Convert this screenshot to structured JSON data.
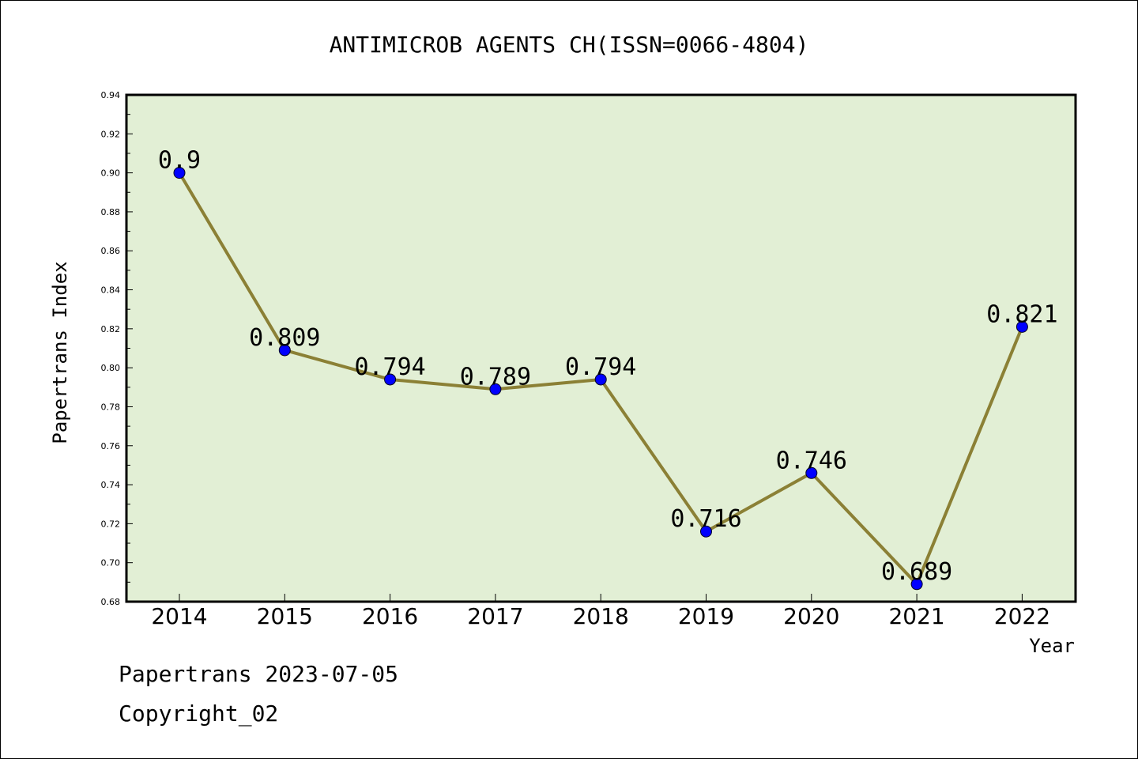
{
  "chart_data": {
    "type": "line",
    "title": "ANTIMICROB AGENTS CH(ISSN=0066-4804)",
    "xlabel": "Year",
    "ylabel": "Papertrans Index",
    "categories": [
      "2014",
      "2015",
      "2016",
      "2017",
      "2018",
      "2019",
      "2020",
      "2021",
      "2022"
    ],
    "series": [
      {
        "values": [
          0.9,
          0.809,
          0.794,
          0.789,
          0.794,
          0.716,
          0.746,
          0.689,
          0.821
        ],
        "labels": [
          "0.9",
          "0.809",
          "0.794",
          "0.789",
          "0.794",
          "0.716",
          "0.746",
          "0.689",
          "0.821"
        ]
      }
    ],
    "ylim": [
      0.68,
      0.94
    ],
    "yticks": [
      "0.68",
      "0.70",
      "0.72",
      "0.74",
      "0.76",
      "0.78",
      "0.80",
      "0.82",
      "0.84",
      "0.86",
      "0.88",
      "0.90",
      "0.92",
      "0.94"
    ],
    "grid": false,
    "colors": {
      "plot_background": "#e2efd5",
      "line": "#8b8035",
      "marker": "#0000ff"
    }
  },
  "footer": {
    "line1": "Papertrans 2023-07-05",
    "line2": "Copyright_02"
  }
}
